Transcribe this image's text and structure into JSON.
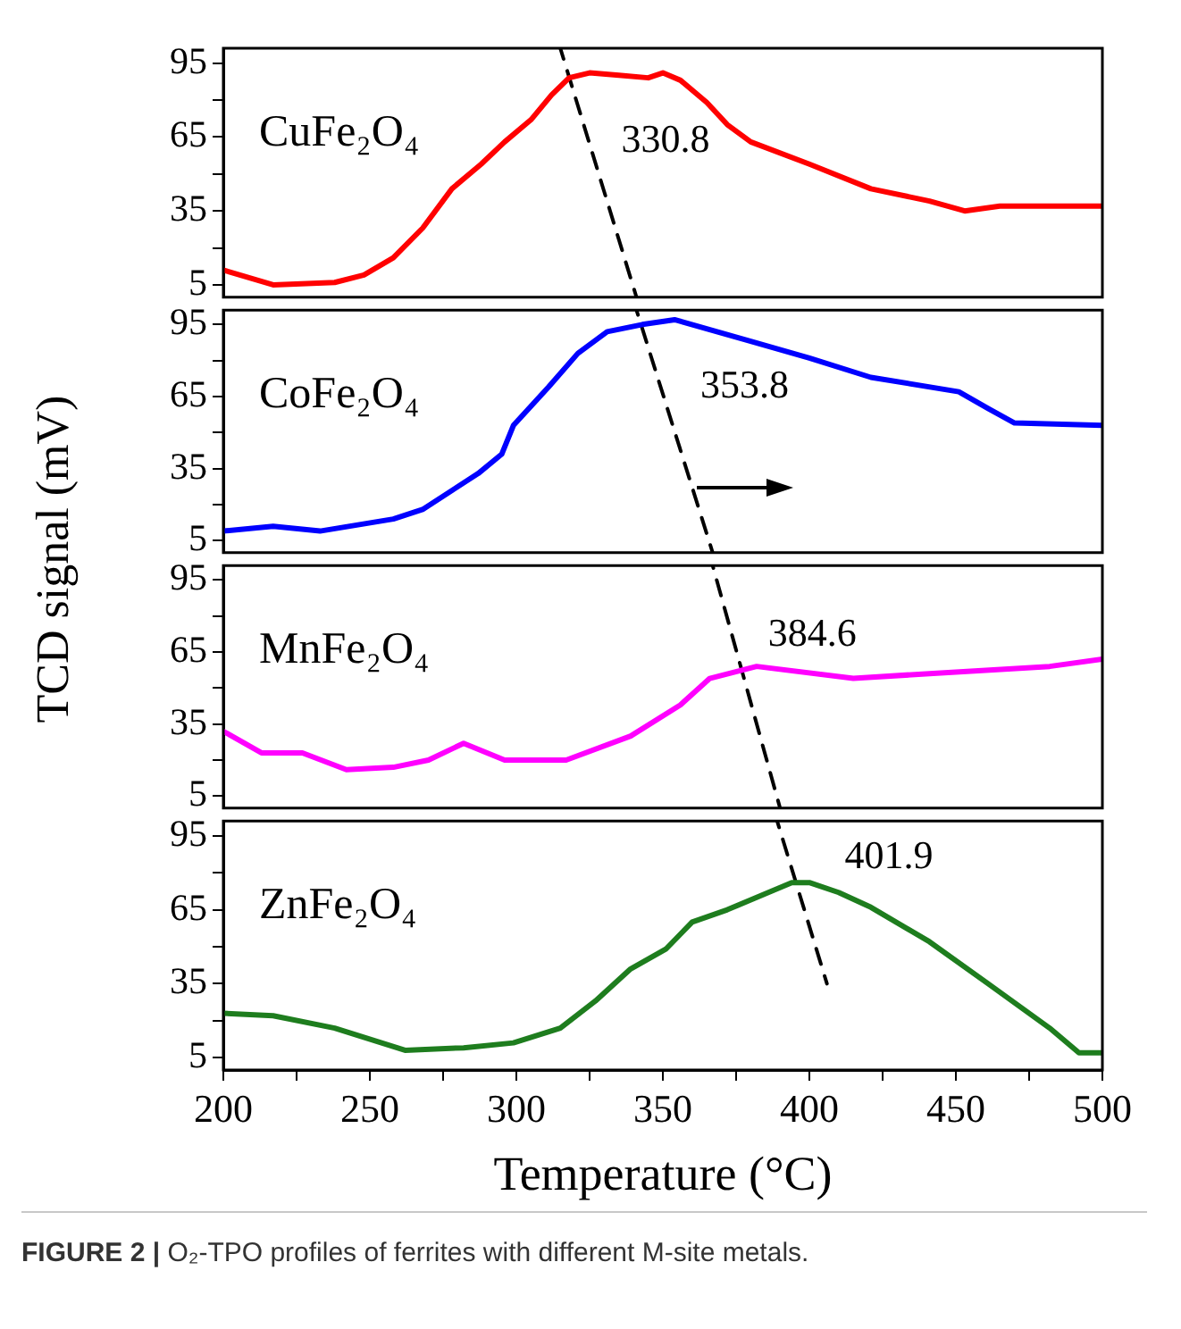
{
  "chart_data": [
    {
      "type": "line",
      "ylabel": "TCD signal (mV)",
      "xlim": [
        200,
        500
      ],
      "ylim": [
        0,
        101
      ],
      "yticks": [
        5,
        {
          "value": 20,
          "label": null
        },
        35,
        {
          "value": 50,
          "label": null
        },
        65,
        {
          "value": 80,
          "label": null
        },
        95
      ],
      "tick_labels": "y",
      "annotations": [
        "CuFe₂O₄",
        "330.8"
      ],
      "series": [
        {
          "color": "#ff0000",
          "x": [
            200,
            217,
            238,
            248,
            258,
            268,
            278,
            288,
            296,
            305,
            312,
            318,
            325,
            335,
            345,
            350,
            356,
            365,
            372,
            380,
            400,
            421,
            441,
            453,
            465,
            500
          ],
          "values": [
            11,
            5,
            6,
            9,
            16,
            28,
            44,
            54,
            63,
            72,
            82,
            89,
            91,
            90,
            89,
            91,
            88,
            79,
            70,
            63,
            54,
            44,
            39,
            35,
            37,
            37
          ]
        },
        {
          "color": "#000000",
          "line_style": "dashed",
          "x": [
            315,
            341
          ],
          "values": [
            101,
            0
          ]
        }
      ]
    },
    {
      "type": "line",
      "xlim": [
        200,
        500
      ],
      "ylim": [
        0,
        101
      ],
      "yticks": [
        5,
        {
          "value": 20,
          "label": null
        },
        35,
        {
          "value": 50,
          "label": null
        },
        65,
        {
          "value": 80,
          "label": null
        },
        95
      ],
      "tick_labels": "y",
      "annotations": [
        "CoFe₂O₄",
        "353.8"
      ],
      "series": [
        {
          "color": "#0000ff",
          "x": [
            200,
            217,
            233,
            258,
            268,
            287,
            295,
            299,
            311,
            321,
            331,
            343,
            354,
            380,
            400,
            421,
            451,
            461,
            470,
            500
          ],
          "values": [
            9,
            11,
            9,
            14,
            18,
            33,
            41,
            53,
            69,
            83,
            92,
            95,
            97,
            88,
            81,
            73,
            67,
            60,
            54,
            53
          ]
        },
        {
          "color": "#000000",
          "line_style": "dashed",
          "x": [
            341,
            367
          ],
          "values": [
            101,
            0
          ]
        }
      ]
    },
    {
      "type": "line",
      "xlim": [
        200,
        500
      ],
      "ylim": [
        0,
        101
      ],
      "yticks": [
        5,
        {
          "value": 20,
          "label": null
        },
        35,
        {
          "value": 50,
          "label": null
        },
        65,
        {
          "value": 80,
          "label": null
        },
        95
      ],
      "tick_labels": "y",
      "annotations": [
        "MnFe₂O₄",
        "384.6"
      ],
      "series": [
        {
          "color": "#ff00ff",
          "x": [
            200,
            213,
            227,
            242,
            258,
            270,
            282,
            296,
            317,
            339,
            356,
            366,
            382,
            415,
            441,
            482,
            500
          ],
          "values": [
            32,
            23,
            23,
            16,
            17,
            20,
            27,
            20,
            20,
            30,
            43,
            54,
            59,
            54,
            56,
            59,
            62
          ]
        },
        {
          "color": "#000000",
          "line_style": "dashed",
          "x": [
            367,
            390
          ],
          "values": [
            101,
            0
          ]
        }
      ]
    },
    {
      "type": "line",
      "xlabel": "Temperature (°C)",
      "xlim": [
        200,
        500
      ],
      "ylim": [
        0,
        101
      ],
      "xticks": [
        200,
        {
          "value": 225,
          "label": null
        },
        250,
        {
          "value": 275,
          "label": null
        },
        300,
        {
          "value": 325,
          "label": null
        },
        350,
        {
          "value": 375,
          "label": null
        },
        400,
        {
          "value": 425,
          "label": null
        },
        450,
        {
          "value": 475,
          "label": null
        },
        500
      ],
      "yticks": [
        5,
        {
          "value": 20,
          "label": null
        },
        35,
        {
          "value": 50,
          "label": null
        },
        65,
        {
          "value": 80,
          "label": null
        },
        95
      ],
      "annotations": [
        "ZnFe₂O₄",
        "401.9",
        "FIGURE 2 | O₂-TPO profiles of ferrites with different M-site metals."
      ],
      "series": [
        {
          "color": "#1e7d1e",
          "x": [
            200,
            217,
            238,
            262,
            282,
            299,
            315,
            327,
            339,
            351,
            360,
            372,
            386,
            394,
            400,
            410,
            421,
            441,
            461,
            482,
            492,
            500
          ],
          "values": [
            23,
            22,
            17,
            8,
            9,
            11,
            17,
            28,
            41,
            49,
            60,
            65,
            72,
            76,
            76,
            72,
            66,
            52,
            35,
            17,
            7,
            7
          ]
        },
        {
          "color": "#000000",
          "line_style": "dashed",
          "x": [
            389,
            406
          ],
          "values": [
            101,
            35
          ]
        }
      ]
    }
  ]
}
